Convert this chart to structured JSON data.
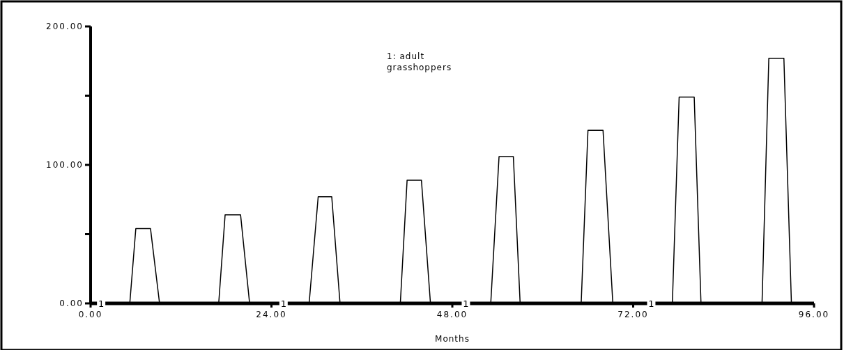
{
  "chart_data": {
    "type": "line",
    "xlabel": "Months",
    "legend": "top",
    "x": [
      0,
      5.2,
      6.0,
      7.95,
      9.15,
      17.0,
      17.85,
      19.9,
      21.1,
      29.0,
      30.2,
      32.0,
      33.1,
      41.1,
      42.0,
      43.9,
      45.1,
      53.1,
      54.2,
      56.1,
      57.0,
      65.1,
      66.0,
      68.0,
      69.3,
      77.2,
      78.1,
      80.1,
      81.0,
      89.1,
      90.0,
      92.0,
      93.0,
      96
    ],
    "series": [
      {
        "name": "1: adult grasshoppers",
        "color": "#000000",
        "values": [
          0,
          0,
          54,
          54,
          0,
          0,
          64,
          64,
          0,
          0,
          77,
          77,
          0,
          0,
          89,
          89,
          0,
          0,
          106,
          106,
          0,
          0,
          125,
          125,
          0,
          0,
          149,
          149,
          0,
          0,
          177,
          177,
          0,
          0
        ]
      }
    ],
    "xlim": [
      0,
      96
    ],
    "ylim": [
      0,
      200
    ],
    "xticks": [
      {
        "value": 0,
        "label": "0.00"
      },
      {
        "value": 24,
        "label": "24.00"
      },
      {
        "value": 48,
        "label": "48.00"
      },
      {
        "value": 72,
        "label": "72.00"
      },
      {
        "value": 96,
        "label": "96.00"
      }
    ],
    "yticks": [
      {
        "value": 0,
        "label": "0.00"
      },
      {
        "value": 50,
        "label": null
      },
      {
        "value": 100,
        "label": "100.00"
      },
      {
        "value": 150,
        "label": null
      },
      {
        "value": 200,
        "label": "200.00"
      }
    ],
    "annotations": [
      {
        "text": "1",
        "x": 1.4,
        "y": 0
      },
      {
        "text": "1",
        "x": 25.6,
        "y": 0
      },
      {
        "text": "1",
        "x": 49.8,
        "y": 0
      },
      {
        "text": "1",
        "x": 74.4,
        "y": 0
      }
    ],
    "marker": "none",
    "line_style": "solid",
    "grid": false
  }
}
